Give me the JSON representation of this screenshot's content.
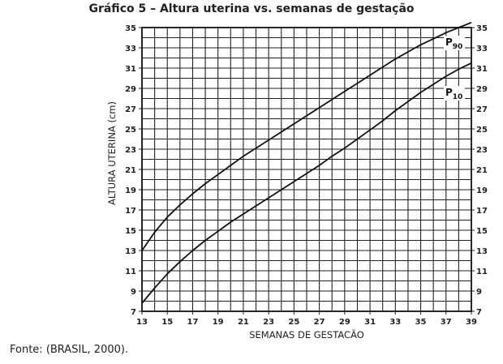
{
  "chart_data": {
    "type": "line",
    "title": "Gráfico 5 – Altura uterina vs. semanas de gestação",
    "xlabel": "SEMANAS DE GESTACÃO",
    "ylabel": "ALTURA UTERINA (cm)",
    "xlim": [
      13,
      39
    ],
    "ylim": [
      7,
      35
    ],
    "x_ticks": [
      "13",
      "15",
      "17",
      "19",
      "21",
      "23",
      "25",
      "27",
      "29",
      "31",
      "33",
      "35",
      "37",
      "39"
    ],
    "y_ticks": [
      "7",
      "9",
      "11",
      "13",
      "15",
      "17",
      "19",
      "21",
      "23",
      "25",
      "27",
      "29",
      "31",
      "33",
      "35"
    ],
    "grid": true,
    "series": [
      {
        "name": "P90",
        "label_main": "P",
        "label_sub": "90",
        "x": [
          13,
          14,
          15,
          16,
          17,
          18,
          19,
          20,
          21,
          22,
          23,
          24,
          25,
          26,
          27,
          28,
          29,
          30,
          31,
          32,
          33,
          34,
          35,
          36,
          37,
          38,
          39
        ],
        "y": [
          13,
          14.8,
          16.3,
          17.5,
          18.6,
          19.6,
          20.5,
          21.4,
          22.3,
          23.1,
          23.9,
          24.7,
          25.5,
          26.3,
          27.1,
          27.9,
          28.7,
          29.5,
          30.3,
          31.1,
          31.9,
          32.6,
          33.3,
          33.9,
          34.5,
          35,
          35.5
        ]
      },
      {
        "name": "P10",
        "label_main": "P",
        "label_sub": "10",
        "x": [
          13,
          14,
          15,
          16,
          17,
          18,
          19,
          20,
          21,
          22,
          23,
          24,
          25,
          26,
          27,
          28,
          29,
          30,
          31,
          32,
          33,
          34,
          35,
          36,
          37,
          38,
          39
        ],
        "y": [
          7.8,
          9.3,
          10.7,
          11.9,
          13,
          14,
          14.9,
          15.8,
          16.6,
          17.4,
          18.2,
          19,
          19.8,
          20.6,
          21.4,
          22.3,
          23.1,
          24,
          24.9,
          25.8,
          26.8,
          27.7,
          28.6,
          29.4,
          30.2,
          30.9,
          31.5
        ]
      }
    ]
  },
  "source": "Fonte: (BRASIL, 2000)."
}
